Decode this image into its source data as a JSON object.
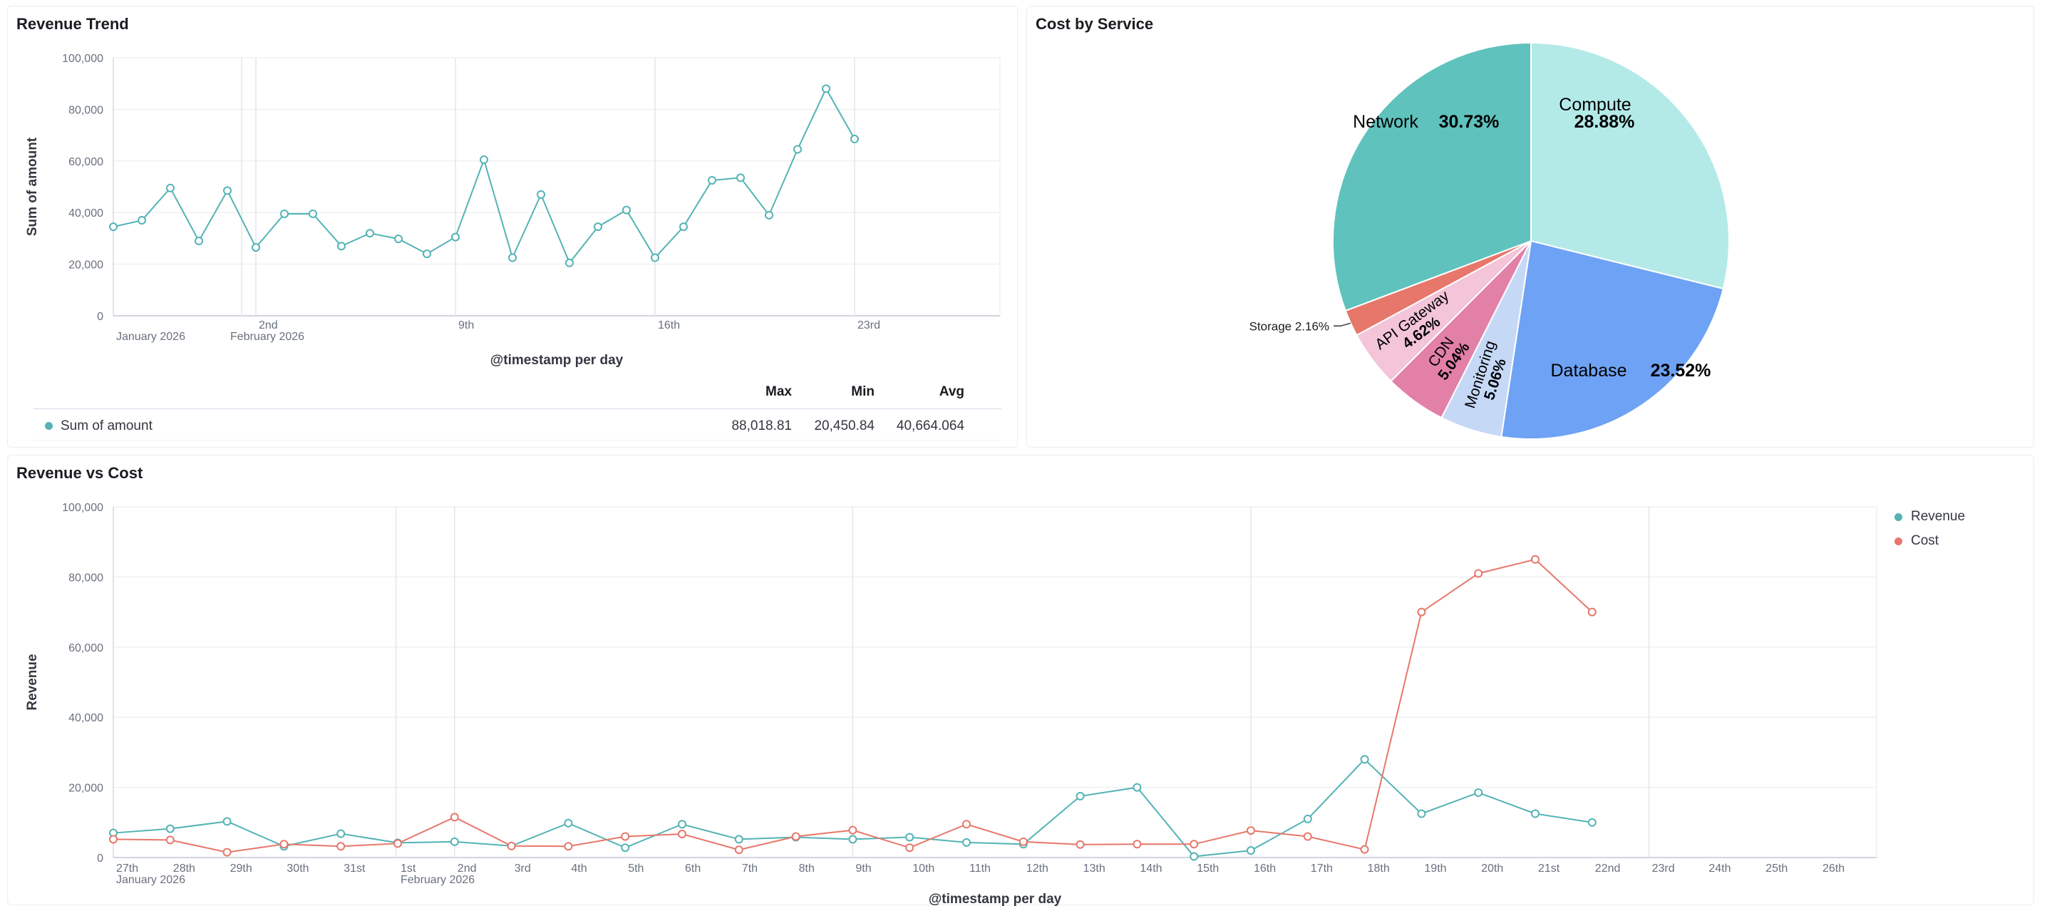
{
  "hover_actions": [
    {
      "icon": "compass-icon"
    },
    {
      "icon": "inspect-icon"
    },
    {
      "icon": "fullscreen-icon"
    },
    {
      "icon": "more-vertical-icon"
    }
  ],
  "panels": {
    "revenue_trend": {
      "title": "Revenue Trend",
      "chart_data": {
        "type": "line",
        "y_axis_title": "Sum of amount",
        "x_axis_title": "@timestamp per day",
        "ylim": [
          0,
          100000
        ],
        "y_ticks": [
          "0",
          "20,000",
          "40,000",
          "60,000",
          "80,000",
          "100,000"
        ],
        "x_ticks": [
          {
            "day": 0,
            "label": "January 2026"
          },
          {
            "day": 5,
            "label": "2nd",
            "sub": "February 2026"
          },
          {
            "day": 12,
            "label": "9th"
          },
          {
            "day": 19,
            "label": "16th"
          },
          {
            "day": 26,
            "label": "23rd"
          }
        ],
        "series": [
          {
            "name": "Sum of amount",
            "color": "#54b3b5",
            "values": [
              34500,
              37000,
              49500,
              29000,
              48500,
              26500,
              39500,
              39500,
              27000,
              32000,
              29800,
              24000,
              30500,
              60500,
              22500,
              47000,
              20500,
              34500,
              41000,
              22500,
              34500,
              52500,
              53500,
              39000,
              64500,
              88000,
              68500
            ]
          }
        ],
        "grid": true
      },
      "legend": {
        "headers": [
          "Max",
          "Min",
          "Avg"
        ],
        "rows": [
          {
            "name": "Sum of amount",
            "color": "#54b3b5",
            "max": "88,018.81",
            "min": "20,450.84",
            "avg": "40,664.064"
          }
        ]
      }
    },
    "cost_by_service": {
      "title": "Cost by Service",
      "chart_data": {
        "type": "pie",
        "slices": [
          {
            "name": "Compute",
            "pct": "28.88%",
            "value": 28.88,
            "color": "#b3eae8"
          },
          {
            "name": "Database",
            "pct": "23.52%",
            "value": 23.52,
            "color": "#6ea2f4"
          },
          {
            "name": "Monitoring",
            "pct": "5.06%",
            "value": 5.06,
            "color": "#c5d9f7"
          },
          {
            "name": "CDN",
            "pct": "5.04%",
            "value": 5.04,
            "color": "#e280a8"
          },
          {
            "name": "API Gateway",
            "pct": "4.62%",
            "value": 4.62,
            "color": "#f4c4d8"
          },
          {
            "name": "Storage",
            "pct": "2.16%",
            "value": 2.16,
            "color": "#e7776b"
          },
          {
            "name": "Network",
            "pct": "30.73%",
            "value": 30.73,
            "color": "#5fc2bd"
          }
        ]
      }
    },
    "revenue_vs_cost": {
      "title": "Revenue vs Cost",
      "chart_data": {
        "type": "line",
        "y_axis_title": "Revenue",
        "x_axis_title": "@timestamp per day",
        "ylim": [
          0,
          100000
        ],
        "y_ticks": [
          "0",
          "20,000",
          "40,000",
          "60,000",
          "80,000",
          "100,000"
        ],
        "x_ticks": [
          {
            "label": "27th",
            "sub": "January 2026"
          },
          {
            "label": "28th"
          },
          {
            "label": "29th"
          },
          {
            "label": "30th"
          },
          {
            "label": "31st"
          },
          {
            "label": "1st",
            "sub": "February 2026"
          },
          {
            "label": "2nd"
          },
          {
            "label": "3rd"
          },
          {
            "label": "4th"
          },
          {
            "label": "5th"
          },
          {
            "label": "6th"
          },
          {
            "label": "7th"
          },
          {
            "label": "8th"
          },
          {
            "label": "9th"
          },
          {
            "label": "10th"
          },
          {
            "label": "11th"
          },
          {
            "label": "12th"
          },
          {
            "label": "13th"
          },
          {
            "label": "14th"
          },
          {
            "label": "15th"
          },
          {
            "label": "16th"
          },
          {
            "label": "17th"
          },
          {
            "label": "18th"
          },
          {
            "label": "19th"
          },
          {
            "label": "20th"
          },
          {
            "label": "21st"
          },
          {
            "label": "22nd"
          },
          {
            "label": "23rd"
          },
          {
            "label": "24th"
          },
          {
            "label": "25th"
          },
          {
            "label": "26th"
          }
        ],
        "series": [
          {
            "name": "Revenue",
            "color": "#54b3b5",
            "values": [
              7000,
              8200,
              10300,
              3200,
              6800,
              4200,
              4500,
              3300,
              9800,
              2800,
              9500,
              5200,
              5800,
              5200,
              5800,
              4300,
              3800,
              17500,
              20000,
              300,
              2000,
              11000,
              28000,
              12500,
              18500,
              12500,
              10000
            ]
          },
          {
            "name": "Cost",
            "color": "#e7776b",
            "values": [
              5200,
              5000,
              1500,
              3800,
              3200,
              4000,
              11500,
              3300,
              3200,
              6000,
              6700,
              2200,
              6000,
              7800,
              2800,
              9500,
              4500,
              3700,
              3800,
              3800,
              7700,
              6000,
              2300,
              70000,
              81000,
              85000,
              70000
            ]
          }
        ],
        "grid": true
      }
    }
  }
}
